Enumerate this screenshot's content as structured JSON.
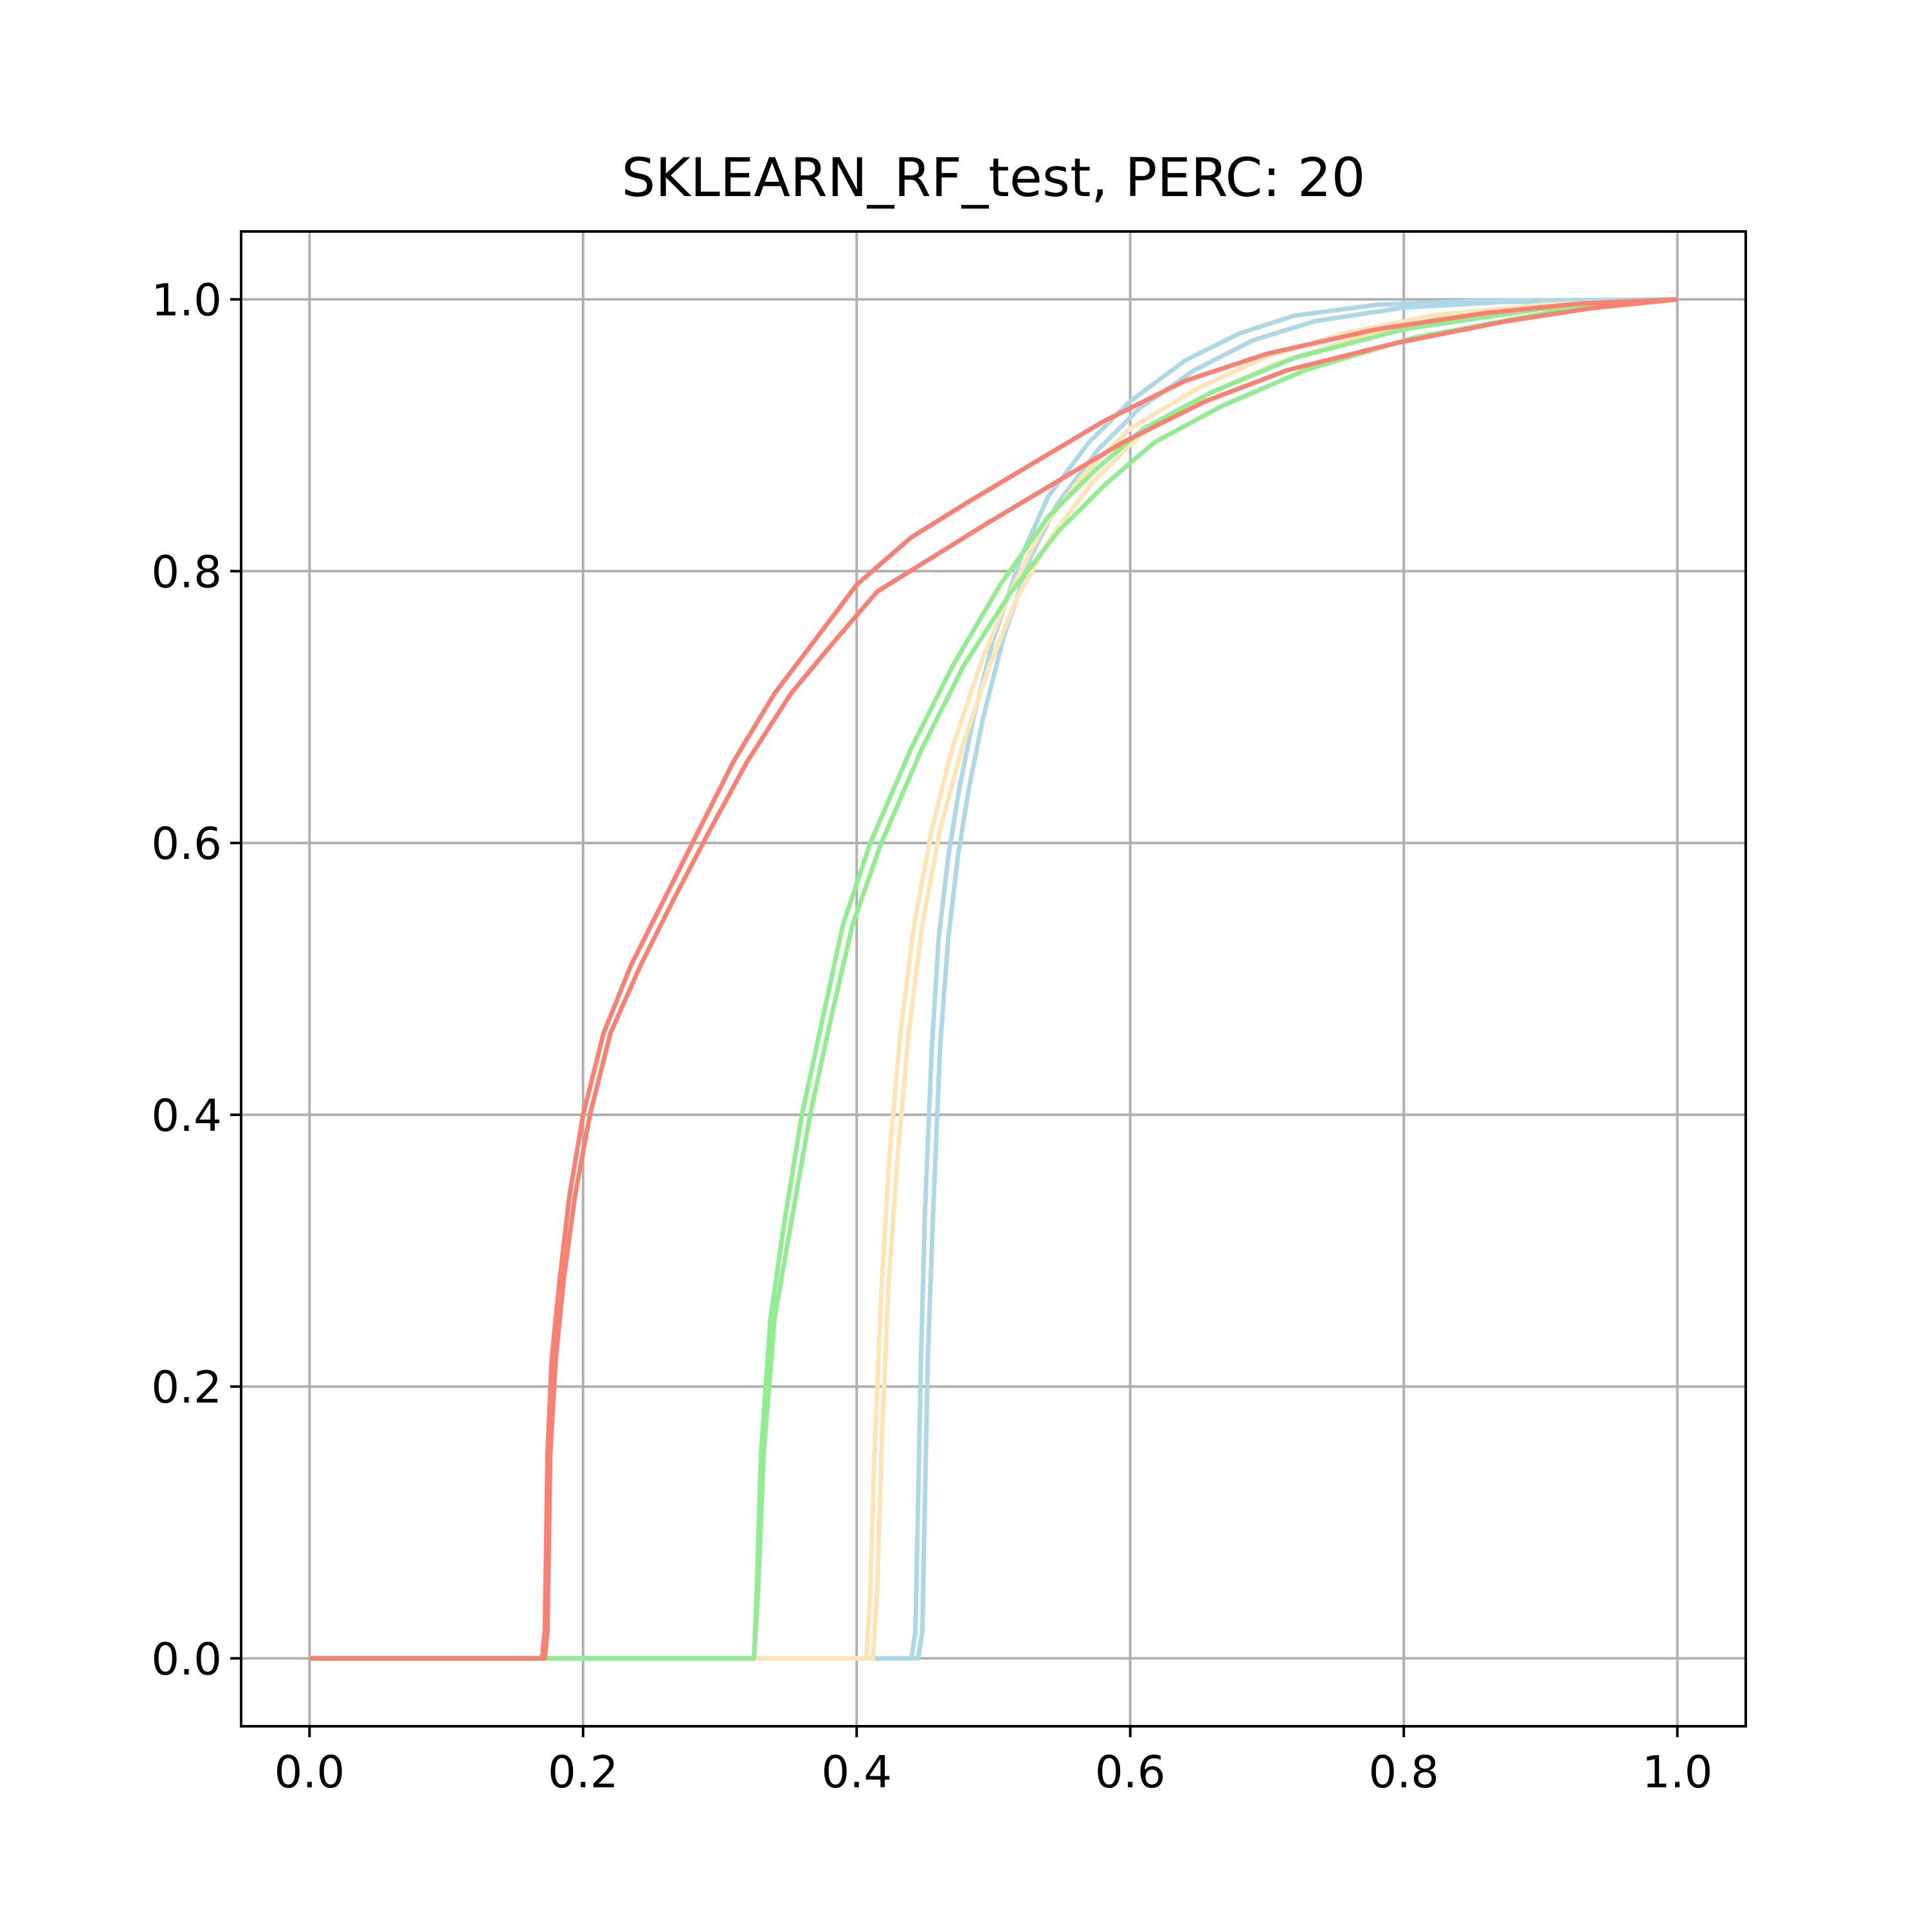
{
  "chart_data": {
    "type": "line",
    "title": "SKLEARN_RF_test, PERC: 20",
    "xlabel": "",
    "ylabel": "",
    "xlim": [
      -0.05,
      1.05
    ],
    "ylim": [
      -0.05,
      1.05
    ],
    "grid": true,
    "x_ticks": [
      "0.0",
      "0.2",
      "0.4",
      "0.6",
      "0.8",
      "1.0"
    ],
    "y_ticks": [
      "0.0",
      "0.2",
      "0.4",
      "0.6",
      "0.8",
      "1.0"
    ],
    "series": [
      {
        "color": "#add8e6",
        "points": [
          [
            0,
            0
          ],
          [
            0.44,
            0
          ],
          [
            0.443,
            0.02
          ],
          [
            0.445,
            0.12
          ],
          [
            0.447,
            0.22
          ],
          [
            0.45,
            0.33
          ],
          [
            0.455,
            0.45
          ],
          [
            0.46,
            0.53
          ],
          [
            0.467,
            0.59
          ],
          [
            0.475,
            0.64
          ],
          [
            0.485,
            0.69
          ],
          [
            0.5,
            0.75
          ],
          [
            0.52,
            0.81
          ],
          [
            0.54,
            0.855
          ],
          [
            0.57,
            0.895
          ],
          [
            0.6,
            0.925
          ],
          [
            0.64,
            0.955
          ],
          [
            0.68,
            0.975
          ],
          [
            0.72,
            0.988
          ],
          [
            0.78,
            0.996
          ],
          [
            0.85,
            0.999
          ],
          [
            1,
            1
          ]
        ]
      },
      {
        "color": "#add8e6",
        "points": [
          [
            0,
            0
          ],
          [
            0.445,
            0
          ],
          [
            0.448,
            0.02
          ],
          [
            0.45,
            0.12
          ],
          [
            0.452,
            0.22
          ],
          [
            0.456,
            0.33
          ],
          [
            0.461,
            0.45
          ],
          [
            0.467,
            0.53
          ],
          [
            0.474,
            0.59
          ],
          [
            0.482,
            0.64
          ],
          [
            0.492,
            0.69
          ],
          [
            0.507,
            0.75
          ],
          [
            0.527,
            0.81
          ],
          [
            0.547,
            0.85
          ],
          [
            0.577,
            0.89
          ],
          [
            0.607,
            0.92
          ],
          [
            0.647,
            0.948
          ],
          [
            0.69,
            0.97
          ],
          [
            0.735,
            0.984
          ],
          [
            0.8,
            0.994
          ],
          [
            0.87,
            0.998
          ],
          [
            1,
            1
          ]
        ]
      },
      {
        "color": "#ffe4b5",
        "points": [
          [
            0,
            0
          ],
          [
            0.407,
            0
          ],
          [
            0.41,
            0.05
          ],
          [
            0.413,
            0.15
          ],
          [
            0.418,
            0.27
          ],
          [
            0.424,
            0.37
          ],
          [
            0.432,
            0.46
          ],
          [
            0.442,
            0.54
          ],
          [
            0.455,
            0.61
          ],
          [
            0.47,
            0.67
          ],
          [
            0.49,
            0.73
          ],
          [
            0.51,
            0.78
          ],
          [
            0.535,
            0.83
          ],
          [
            0.565,
            0.87
          ],
          [
            0.6,
            0.905
          ],
          [
            0.65,
            0.935
          ],
          [
            0.7,
            0.958
          ],
          [
            0.76,
            0.976
          ],
          [
            0.82,
            0.988
          ],
          [
            0.9,
            0.996
          ],
          [
            1,
            1
          ]
        ]
      },
      {
        "color": "#ffe4b5",
        "points": [
          [
            0,
            0
          ],
          [
            0.412,
            0
          ],
          [
            0.415,
            0.05
          ],
          [
            0.418,
            0.15
          ],
          [
            0.423,
            0.27
          ],
          [
            0.43,
            0.37
          ],
          [
            0.438,
            0.46
          ],
          [
            0.448,
            0.54
          ],
          [
            0.461,
            0.61
          ],
          [
            0.477,
            0.67
          ],
          [
            0.497,
            0.73
          ],
          [
            0.517,
            0.78
          ],
          [
            0.542,
            0.825
          ],
          [
            0.572,
            0.865
          ],
          [
            0.607,
            0.9
          ],
          [
            0.657,
            0.93
          ],
          [
            0.707,
            0.953
          ],
          [
            0.767,
            0.972
          ],
          [
            0.827,
            0.986
          ],
          [
            0.905,
            0.995
          ],
          [
            1,
            1
          ]
        ]
      },
      {
        "color": "#90ee90",
        "points": [
          [
            0,
            0
          ],
          [
            0.325,
            0
          ],
          [
            0.327,
            0.05
          ],
          [
            0.33,
            0.15
          ],
          [
            0.337,
            0.25
          ],
          [
            0.347,
            0.32
          ],
          [
            0.36,
            0.4
          ],
          [
            0.375,
            0.47
          ],
          [
            0.39,
            0.54
          ],
          [
            0.41,
            0.6
          ],
          [
            0.44,
            0.67
          ],
          [
            0.47,
            0.73
          ],
          [
            0.505,
            0.79
          ],
          [
            0.54,
            0.84
          ],
          [
            0.575,
            0.875
          ],
          [
            0.61,
            0.905
          ],
          [
            0.66,
            0.932
          ],
          [
            0.72,
            0.957
          ],
          [
            0.8,
            0.978
          ],
          [
            0.9,
            0.993
          ],
          [
            1,
            1
          ]
        ]
      },
      {
        "color": "#90ee90",
        "points": [
          [
            0,
            0
          ],
          [
            0.325,
            0
          ],
          [
            0.328,
            0.05
          ],
          [
            0.332,
            0.15
          ],
          [
            0.34,
            0.25
          ],
          [
            0.352,
            0.32
          ],
          [
            0.366,
            0.4
          ],
          [
            0.381,
            0.47
          ],
          [
            0.397,
            0.54
          ],
          [
            0.418,
            0.6
          ],
          [
            0.448,
            0.67
          ],
          [
            0.478,
            0.73
          ],
          [
            0.513,
            0.785
          ],
          [
            0.548,
            0.83
          ],
          [
            0.583,
            0.865
          ],
          [
            0.618,
            0.895
          ],
          [
            0.668,
            0.922
          ],
          [
            0.728,
            0.948
          ],
          [
            0.808,
            0.972
          ],
          [
            0.905,
            0.99
          ],
          [
            1,
            1
          ]
        ]
      },
      {
        "color": "#fa8072",
        "points": [
          [
            0,
            0
          ],
          [
            0.17,
            0
          ],
          [
            0.172,
            0.02
          ],
          [
            0.174,
            0.15
          ],
          [
            0.177,
            0.22
          ],
          [
            0.183,
            0.28
          ],
          [
            0.19,
            0.34
          ],
          [
            0.2,
            0.4
          ],
          [
            0.215,
            0.46
          ],
          [
            0.235,
            0.51
          ],
          [
            0.26,
            0.56
          ],
          [
            0.285,
            0.61
          ],
          [
            0.31,
            0.66
          ],
          [
            0.34,
            0.71
          ],
          [
            0.37,
            0.75
          ],
          [
            0.4,
            0.79
          ],
          [
            0.44,
            0.825
          ],
          [
            0.48,
            0.85
          ],
          [
            0.53,
            0.88
          ],
          [
            0.58,
            0.91
          ],
          [
            0.64,
            0.94
          ],
          [
            0.7,
            0.96
          ],
          [
            0.78,
            0.978
          ],
          [
            0.86,
            0.99
          ],
          [
            0.93,
            0.997
          ],
          [
            1,
            1
          ]
        ]
      },
      {
        "color": "#fa8072",
        "points": [
          [
            0,
            0
          ],
          [
            0.172,
            0
          ],
          [
            0.174,
            0.02
          ],
          [
            0.176,
            0.15
          ],
          [
            0.18,
            0.22
          ],
          [
            0.186,
            0.28
          ],
          [
            0.194,
            0.34
          ],
          [
            0.205,
            0.4
          ],
          [
            0.22,
            0.46
          ],
          [
            0.242,
            0.51
          ],
          [
            0.267,
            0.56
          ],
          [
            0.293,
            0.61
          ],
          [
            0.32,
            0.66
          ],
          [
            0.352,
            0.71
          ],
          [
            0.385,
            0.75
          ],
          [
            0.415,
            0.785
          ],
          [
            0.455,
            0.81
          ],
          [
            0.495,
            0.835
          ],
          [
            0.545,
            0.865
          ],
          [
            0.595,
            0.895
          ],
          [
            0.655,
            0.925
          ],
          [
            0.715,
            0.948
          ],
          [
            0.795,
            0.968
          ],
          [
            0.875,
            0.984
          ],
          [
            0.94,
            0.994
          ],
          [
            1,
            1
          ]
        ]
      }
    ]
  }
}
